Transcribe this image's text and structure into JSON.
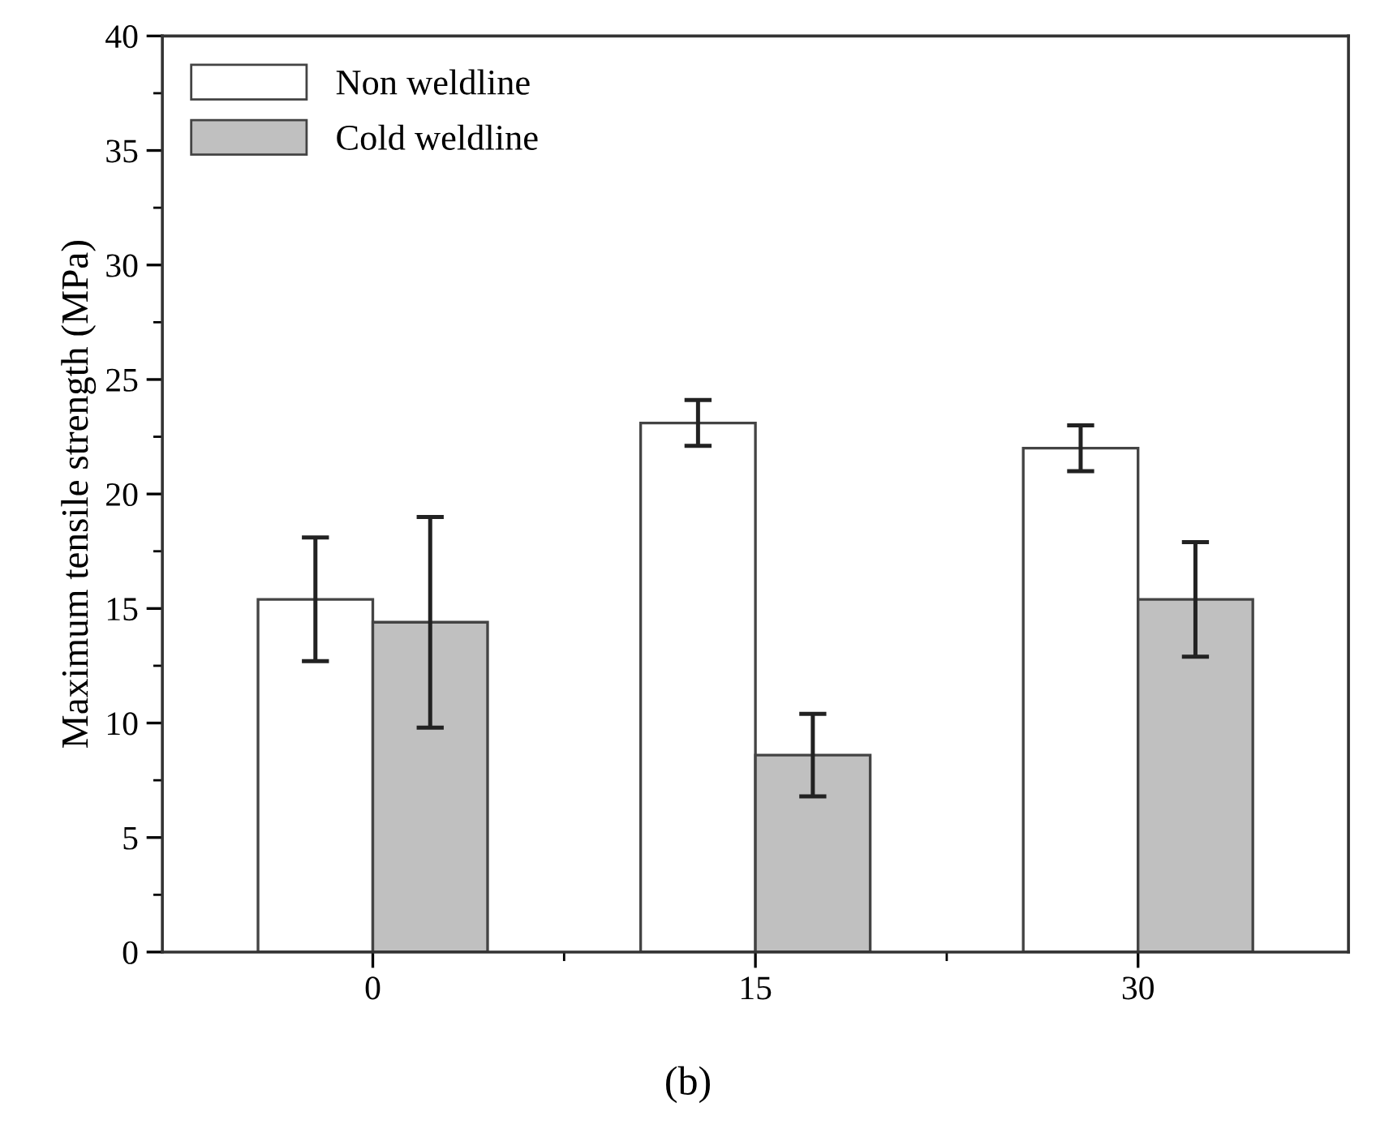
{
  "chart_data": {
    "type": "bar",
    "ylabel": "Maximum tensile strength (MPa)",
    "categories": [
      "0",
      "15",
      "30"
    ],
    "series": [
      {
        "name": "Non weldline",
        "color": "#ffffff",
        "values": [
          15.4,
          23.1,
          22.0
        ],
        "errors": [
          2.7,
          1.0,
          1.0
        ]
      },
      {
        "name": "Cold weldline",
        "color": "#c0c0c0",
        "values": [
          14.4,
          8.6,
          15.4
        ],
        "errors": [
          4.6,
          1.8,
          2.5
        ]
      }
    ],
    "ylim": [
      0,
      40
    ],
    "yticks": [
      0,
      5,
      10,
      15,
      20,
      25,
      30,
      35,
      40
    ],
    "grid": false,
    "legend": "top left",
    "annotations": [
      "(b)"
    ]
  }
}
